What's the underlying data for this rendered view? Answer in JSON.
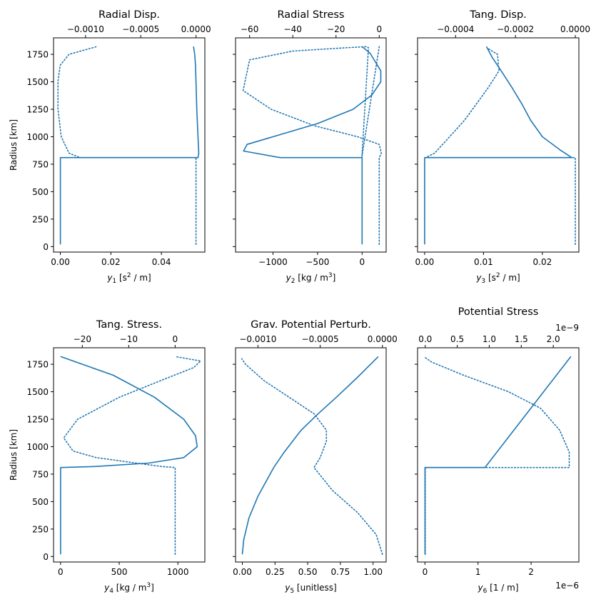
{
  "figure": {
    "background": "#ffffff",
    "line_color": "#1f77b4",
    "line_styles": {
      "solid": "bottom axis",
      "dotted": "top axis"
    }
  },
  "chart_data": [
    {
      "type": "line",
      "title": "Radial Disp.",
      "xlabel": "y1 [s2 / m]",
      "xlabel_main": "y",
      "xlabel_sub": "1",
      "xlabel_rest": " [s",
      "xlabel_sup": "2",
      "xlabel_end": " / m]",
      "ylabel": "Radius [km]",
      "ylim": [
        -50,
        1900
      ],
      "yticks": [
        0,
        250,
        500,
        750,
        1000,
        1250,
        1500,
        1750
      ],
      "show_ytick_labels": true,
      "xlim": [
        -0.0027,
        0.0572
      ],
      "xticks": [
        0.0,
        0.02,
        0.04
      ],
      "xticklabels": [
        "0.00",
        "0.02",
        "0.04"
      ],
      "top_xlim": [
        -0.00129,
        8e-05
      ],
      "top_xticks": [
        -0.001,
        -0.0005,
        0.0
      ],
      "top_xticklabels": [
        "−0.0010",
        "−0.0005",
        "0.0000"
      ],
      "series": [
        {
          "style": "solid",
          "axis": "bottom",
          "x": [
            0,
            0,
            0.0545,
            0.0548,
            0.0545,
            0.054,
            0.0537,
            0.0535,
            0.0532,
            0.0527
          ],
          "y": [
            20,
            810,
            810,
            850,
            1000,
            1250,
            1500,
            1650,
            1750,
            1820
          ]
        },
        {
          "style": "dotted",
          "axis": "top",
          "x": [
            0.0,
            0.0,
            -0.00105,
            -0.00115,
            -0.00122,
            -0.00125,
            -0.00125,
            -0.00123,
            -0.00115,
            -0.0009
          ],
          "y": [
            20,
            810,
            810,
            850,
            1000,
            1250,
            1500,
            1650,
            1750,
            1820
          ]
        }
      ]
    },
    {
      "type": "line",
      "title": "Radial Stress",
      "xlabel": "y2 [kg / m3]",
      "xlabel_main": "y",
      "xlabel_sub": "2",
      "xlabel_rest": " [kg / m",
      "xlabel_sup": "3",
      "xlabel_end": "]",
      "ylabel": "",
      "ylim": [
        -50,
        1900
      ],
      "yticks": [
        0,
        250,
        500,
        750,
        1000,
        1250,
        1500,
        1750
      ],
      "show_ytick_labels": false,
      "xlim": [
        -1420,
        270
      ],
      "xticks": [
        -1000,
        -500,
        0
      ],
      "xticklabels": [
        "−1000",
        "−500",
        "0"
      ],
      "top_xlim": [
        -66.5,
        3.2
      ],
      "top_xticks": [
        -60,
        -40,
        -20,
        0
      ],
      "top_xticklabels": [
        "−60",
        "−40",
        "−20",
        "0"
      ],
      "series": [
        {
          "style": "solid",
          "axis": "bottom",
          "x": [
            0,
            0,
            -920,
            -1330,
            -1290,
            -1000,
            -500,
            -100,
            110,
            210,
            210,
            90,
            0
          ],
          "y": [
            20,
            810,
            810,
            870,
            930,
            1000,
            1120,
            1250,
            1380,
            1500,
            1600,
            1760,
            1820
          ]
        },
        {
          "style": "dotted",
          "axis": "top",
          "x": [
            0,
            0,
            1.0,
            0,
            -10,
            -30,
            -50,
            -63,
            -60,
            -40,
            -15,
            -6,
            -5,
            -8,
            0
          ],
          "y": [
            20,
            810,
            850,
            930,
            1000,
            1100,
            1250,
            1420,
            1700,
            1780,
            1810,
            1820,
            1810,
            820,
            1820
          ]
        }
      ]
    },
    {
      "type": "line",
      "title": "Tang. Disp.",
      "xlabel": "y3 [s2 / m]",
      "xlabel_main": "y",
      "xlabel_sub": "3",
      "xlabel_rest": " [s",
      "xlabel_sup": "2",
      "xlabel_end": " / m]",
      "ylabel": "",
      "ylim": [
        -50,
        1900
      ],
      "yticks": [
        0,
        250,
        500,
        750,
        1000,
        1250,
        1500,
        1750
      ],
      "show_ytick_labels": false,
      "xlim": [
        -0.0012,
        0.0262
      ],
      "xticks": [
        0.0,
        0.01,
        0.02
      ],
      "xticklabels": [
        "0.00",
        "0.01",
        "0.02"
      ],
      "top_xlim": [
        -0.000527,
        1.19e-05
      ],
      "top_xticks": [
        -0.0004,
        -0.0002,
        0.0
      ],
      "top_xticklabels": [
        "−0.0004",
        "−0.0002",
        "0.0000"
      ],
      "series": [
        {
          "style": "solid",
          "axis": "bottom",
          "x": [
            0,
            0,
            0.025,
            0.023,
            0.02,
            0.018,
            0.0165,
            0.0148,
            0.013,
            0.0115,
            0.0105
          ],
          "y": [
            20,
            810,
            810,
            880,
            1000,
            1150,
            1300,
            1450,
            1600,
            1720,
            1820
          ]
        },
        {
          "style": "dotted",
          "axis": "top",
          "x": [
            0.0,
            0.0,
            -0.0005,
            -0.00047,
            -0.00042,
            -0.00037,
            -0.00033,
            -0.00029,
            -0.000255,
            -0.00026,
            -0.00029
          ],
          "y": [
            20,
            810,
            810,
            850,
            1000,
            1150,
            1300,
            1450,
            1600,
            1750,
            1800
          ]
        }
      ]
    },
    {
      "type": "line",
      "title": "Tang. Stress.",
      "xlabel": "y4 [kg / m3]",
      "xlabel_main": "y",
      "xlabel_sub": "4",
      "xlabel_rest": " [kg / m",
      "xlabel_sup": "3",
      "xlabel_end": "]",
      "ylabel": "Radius [km]",
      "ylim": [
        -50,
        1900
      ],
      "yticks": [
        0,
        250,
        500,
        750,
        1000,
        1250,
        1500,
        1750
      ],
      "show_ytick_labels": true,
      "xlim": [
        -60,
        1230
      ],
      "xticks": [
        0,
        500,
        1000
      ],
      "xticklabels": [
        "0",
        "500",
        "1000"
      ],
      "top_xlim": [
        -26.2,
        6.4
      ],
      "top_xticks": [
        -20,
        -10,
        0
      ],
      "top_xticklabels": [
        "−20",
        "−10",
        "0"
      ],
      "series": [
        {
          "style": "solid",
          "axis": "bottom",
          "x": [
            0,
            0,
            300,
            750,
            1050,
            1165,
            1150,
            1050,
            800,
            450,
            0
          ],
          "y": [
            20,
            810,
            820,
            850,
            900,
            1000,
            1100,
            1250,
            1450,
            1650,
            1820
          ]
        },
        {
          "style": "dotted",
          "axis": "top",
          "x": [
            0,
            0,
            -3,
            -10,
            -17,
            -22,
            -24,
            -21,
            -12,
            -2,
            4,
            5.5,
            0
          ],
          "y": [
            20,
            810,
            820,
            860,
            900,
            960,
            1080,
            1250,
            1450,
            1620,
            1720,
            1780,
            1820
          ]
        }
      ]
    },
    {
      "type": "line",
      "title": "Grav. Potential Perturb.",
      "xlabel": "y5 [unitless]",
      "xlabel_main": "y",
      "xlabel_sub": "5",
      "xlabel_rest": " [unitless]",
      "xlabel_sup": "",
      "xlabel_end": "",
      "ylabel": "",
      "ylim": [
        -50,
        1900
      ],
      "yticks": [
        0,
        250,
        500,
        750,
        1000,
        1250,
        1500,
        1750
      ],
      "show_ytick_labels": false,
      "xlim": [
        -0.052,
        1.1
      ],
      "xticks": [
        0.0,
        0.25,
        0.5,
        0.75,
        1.0
      ],
      "xticklabels": [
        "0.00",
        "0.25",
        "0.50",
        "0.75",
        "1.00"
      ],
      "top_xlim": [
        -0.00118,
        3e-05
      ],
      "top_xticks": [
        -0.001,
        -0.0005,
        0.0
      ],
      "top_xticklabels": [
        "−0.0010",
        "−0.0005",
        "0.0000"
      ],
      "series": [
        {
          "style": "solid",
          "axis": "bottom",
          "x": [
            0.0,
            0.01,
            0.05,
            0.12,
            0.24,
            0.32,
            0.45,
            0.58,
            0.72,
            0.88,
            1.04
          ],
          "y": [
            20,
            150,
            350,
            550,
            810,
            950,
            1150,
            1300,
            1450,
            1630,
            1820
          ]
        },
        {
          "style": "dotted",
          "axis": "top",
          "x": [
            0.0,
            -5e-05,
            -0.0002,
            -0.0004,
            -0.00055,
            -0.0005,
            -0.00045,
            -0.00045,
            -0.00055,
            -0.00075,
            -0.00095,
            -0.0011,
            -0.00113
          ],
          "y": [
            20,
            200,
            400,
            600,
            810,
            900,
            1050,
            1150,
            1300,
            1450,
            1600,
            1750,
            1800
          ]
        }
      ]
    },
    {
      "type": "line",
      "title": "Potential Stress",
      "xlabel": "y6 [1 / m]",
      "xlabel_main": "y",
      "xlabel_sub": "6",
      "xlabel_rest": " [1 / m]",
      "xlabel_sup": "",
      "xlabel_end": "",
      "ylabel": "",
      "ylim": [
        -50,
        1900
      ],
      "yticks": [
        0,
        250,
        500,
        750,
        1000,
        1250,
        1500,
        1750
      ],
      "show_ytick_labels": false,
      "xlim": [
        -1.4e-07,
        2.9e-06
      ],
      "xticks": [
        0,
        1e-06,
        2e-06
      ],
      "xticklabels": [
        "0",
        "1",
        "2"
      ],
      "bottom_offset": "1e−6",
      "top_xlim": [
        -1.2e-10,
        2.4e-09
      ],
      "top_xticks": [
        0,
        5e-10,
        1e-09,
        1.5e-09,
        2e-09
      ],
      "top_xticklabels": [
        "0.0",
        "0.5",
        "1.0",
        "1.5",
        "2.0"
      ],
      "top_offset": "1e−9",
      "series": [
        {
          "style": "solid",
          "axis": "bottom",
          "x": [
            0,
            0,
            1.13e-06,
            2.75e-06
          ],
          "y": [
            20,
            810,
            810,
            1820
          ]
        },
        {
          "style": "dotted",
          "axis": "top",
          "x": [
            0,
            0,
            2.25e-09,
            2.25e-09,
            2.1e-09,
            1.8e-09,
            1.3e-09,
            6e-10,
            1e-10,
            0.0
          ],
          "y": [
            20,
            810,
            810,
            950,
            1150,
            1350,
            1500,
            1650,
            1770,
            1810
          ]
        }
      ]
    }
  ]
}
